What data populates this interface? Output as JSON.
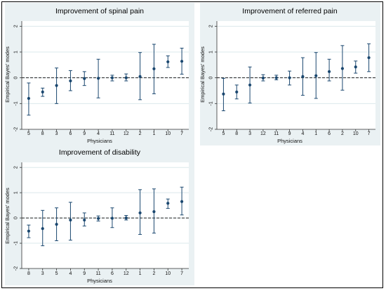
{
  "chart_data": [
    {
      "type": "scatter",
      "title": "Improvement of spinal pain",
      "xlabel": "Physicians",
      "ylabel": "Empirical Bayes' modes",
      "ylim": [
        -2,
        2.2
      ],
      "yticks": [
        "-2",
        "-1",
        "0",
        "1",
        "2"
      ],
      "reference_line": 0,
      "categories": [
        "5",
        "8",
        "3",
        "6",
        "9",
        "4",
        "11",
        "12",
        "2",
        "1",
        "10",
        "7"
      ],
      "series": [
        {
          "values": [
            -0.8,
            -0.55,
            -0.3,
            -0.12,
            -0.03,
            -0.02,
            0.0,
            0.0,
            0.05,
            0.35,
            0.62,
            0.64
          ],
          "lower": [
            -1.45,
            -0.72,
            -1.0,
            -0.5,
            -0.3,
            -0.78,
            -0.12,
            -0.12,
            -0.85,
            -0.62,
            0.4,
            0.14
          ],
          "upper": [
            -0.2,
            -0.4,
            0.38,
            0.28,
            0.24,
            0.72,
            0.1,
            0.15,
            0.98,
            1.3,
            0.85,
            1.15
          ]
        }
      ]
    },
    {
      "type": "scatter",
      "title": "Improvement of referred pain",
      "xlabel": "Physicians",
      "ylabel": "Empirical Bayes' modes",
      "ylim": [
        -2,
        2.2
      ],
      "yticks": [
        "-2",
        "-1",
        "0",
        "1",
        "2"
      ],
      "reference_line": 0,
      "categories": [
        "5",
        "8",
        "3",
        "12",
        "11",
        "9",
        "4",
        "1",
        "6",
        "2",
        "10",
        "7"
      ],
      "series": [
        {
          "values": [
            -0.63,
            -0.55,
            -0.28,
            -0.01,
            0.0,
            0.0,
            0.05,
            0.08,
            0.24,
            0.36,
            0.42,
            0.78
          ],
          "lower": [
            -1.28,
            -0.82,
            -0.98,
            -0.12,
            -0.08,
            -0.28,
            -0.68,
            -0.8,
            -0.12,
            -0.48,
            0.18,
            0.24
          ],
          "upper": [
            -0.02,
            -0.28,
            0.42,
            0.12,
            0.1,
            0.26,
            0.78,
            0.98,
            0.72,
            1.25,
            0.65,
            1.32
          ]
        }
      ]
    },
    {
      "type": "scatter",
      "title": "Improvement of disability",
      "xlabel": "Physicians",
      "ylabel": "Empirical Bayes' modes",
      "ylim": [
        -2,
        2.2
      ],
      "yticks": [
        "-2",
        "-1",
        "0",
        "1",
        "2"
      ],
      "reference_line": 0,
      "categories": [
        "8",
        "3",
        "5",
        "4",
        "9",
        "11",
        "6",
        "12",
        "1",
        "2",
        "10",
        "7"
      ],
      "series": [
        {
          "values": [
            -0.52,
            -0.42,
            -0.25,
            -0.08,
            -0.08,
            -0.02,
            -0.01,
            0.0,
            0.2,
            0.25,
            0.58,
            0.65
          ],
          "lower": [
            -0.78,
            -1.1,
            -0.9,
            -0.88,
            -0.32,
            -0.12,
            -0.38,
            -0.08,
            -0.65,
            -0.6,
            0.38,
            0.12
          ],
          "upper": [
            -0.28,
            0.3,
            0.4,
            0.62,
            0.2,
            0.08,
            0.4,
            0.1,
            1.12,
            1.15,
            0.75,
            1.22
          ]
        }
      ]
    }
  ],
  "colors": {
    "background": "#eaf1f3",
    "plot_area": "#ffffff",
    "grid": "#dbe8ec",
    "marker": "#1a476f",
    "errorbar": "#1a476f",
    "reference_line": "#222222"
  }
}
